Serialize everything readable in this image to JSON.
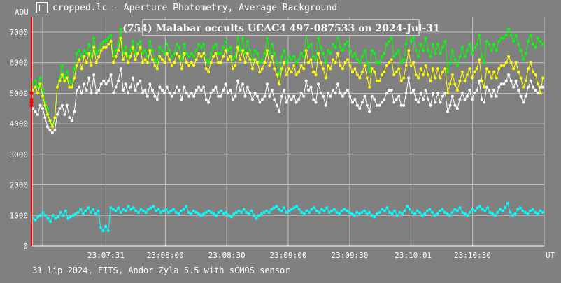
{
  "window": {
    "title": "cropped.lc - Aperture Photometry, Average Background",
    "icon": "chart-app-icon"
  },
  "footer": {
    "text": "31 lip 2024, FITS, Andor Zyla 5.5 with sCMOS sensor"
  },
  "chart_data": {
    "type": "scatter",
    "title": "(754) Malabar occults UCAC4 497-087533 on 2024-Jul-31",
    "ylabel": "ADU",
    "xlabel": "UT",
    "ylim": [
      0,
      7500
    ],
    "xlim": [
      "23:06:55",
      "23:11:05"
    ],
    "grid": true,
    "yticks": [
      "0",
      "1000",
      "2000",
      "3000",
      "4000",
      "5000",
      "6000",
      "7000"
    ],
    "xticks": [
      "23:07:31",
      "23:08:00",
      "23:08:30",
      "23:09:00",
      "23:09:30",
      "23:10:01",
      "23:10:30"
    ],
    "colors": {
      "green": "#00ff00",
      "yellow": "#ffff00",
      "white": "#ffffff",
      "cyan": "#00ffff",
      "event": "#ff0000",
      "title_box": "#808080"
    },
    "series": [
      {
        "color": "green",
        "y": [
          5300,
          5400,
          5200,
          5500,
          5100,
          4700,
          4500,
          4100,
          4000,
          4200,
          5200,
          5500,
          5900,
          5500,
          5700,
          5400,
          5200,
          5800,
          6300,
          6400,
          6200,
          6400,
          6300,
          6600,
          6200,
          6800,
          6300,
          6400,
          6600,
          6700,
          6700,
          6800,
          6900,
          6200,
          6400,
          6600,
          7100,
          6300,
          6500,
          6200,
          6400,
          6700,
          6300,
          6600,
          6700,
          6300,
          6400,
          6200,
          6700,
          6400,
          6100,
          6000,
          6500,
          6400,
          6300,
          6600,
          6400,
          6200,
          6300,
          6600,
          6500,
          6100,
          6600,
          6300,
          6200,
          6300,
          6200,
          6400,
          6600,
          6500,
          6600,
          6100,
          6000,
          6300,
          6500,
          6600,
          6300,
          6300,
          6500,
          6700,
          6400,
          6500,
          6100,
          6200,
          6900,
          6400,
          6800,
          6300,
          6700,
          6400,
          6100,
          6400,
          6300,
          6000,
          6100,
          6300,
          6800,
          6300,
          6600,
          6300,
          6000,
          5600,
          6200,
          6400,
          6000,
          6200,
          6100,
          6200,
          6000,
          6100,
          6300,
          6200,
          6900,
          6500,
          6600,
          6200,
          6100,
          6800,
          6500,
          6300,
          6000,
          6400,
          6300,
          6600,
          6500,
          6900,
          6500,
          6400,
          6600,
          6700,
          6400,
          6200,
          6300,
          6100,
          6000,
          6200,
          6400,
          6000,
          5700,
          6400,
          6300,
          6000,
          6000,
          6200,
          6300,
          6600,
          6700,
          6800,
          6200,
          6300,
          6400,
          6000,
          6100,
          6600,
          7300,
          6700,
          6800,
          6400,
          6200,
          6600,
          6400,
          6800,
          6400,
          6200,
          6600,
          6300,
          6600,
          6300,
          6500,
          6700,
          5700,
          6000,
          6400,
          6100,
          5900,
          6200,
          6500,
          6200,
          6400,
          6600,
          6300,
          6500,
          6600,
          6900,
          6200,
          6000,
          6700,
          6600,
          6400,
          6600,
          6400,
          6700,
          6800,
          6800,
          6900,
          7100,
          6900,
          6700,
          6900,
          6600,
          6400,
          6100,
          6300,
          6700,
          6900,
          6600,
          6500,
          6800,
          6700,
          6600
        ]
      },
      {
        "color": "yellow",
        "y": [
          5100,
          5200,
          5000,
          5300,
          4900,
          4600,
          4300,
          4100,
          3900,
          4200,
          5200,
          5400,
          5600,
          5400,
          5500,
          5200,
          5200,
          5500,
          5900,
          6100,
          5800,
          6200,
          6000,
          6300,
          5900,
          6500,
          6000,
          6200,
          6400,
          6500,
          6500,
          6600,
          6700,
          6000,
          6200,
          6400,
          6800,
          6100,
          6300,
          6000,
          6200,
          6500,
          6100,
          6300,
          6500,
          6000,
          6100,
          6000,
          6400,
          6100,
          5900,
          5800,
          6200,
          6100,
          6000,
          6300,
          6100,
          5900,
          6000,
          6300,
          6200,
          5800,
          6300,
          6000,
          5900,
          6000,
          5900,
          6100,
          6300,
          6200,
          6300,
          5800,
          5700,
          6000,
          6200,
          6300,
          6000,
          6000,
          6200,
          6400,
          6100,
          6200,
          5800,
          5900,
          6500,
          6100,
          6400,
          6000,
          6300,
          6100,
          5800,
          6100,
          6000,
          5700,
          5800,
          6000,
          6400,
          5900,
          6200,
          5800,
          5600,
          5300,
          5800,
          6000,
          5600,
          5800,
          5700,
          5900,
          5600,
          5700,
          5900,
          5800,
          6400,
          6000,
          6100,
          5700,
          5600,
          6300,
          6000,
          5800,
          5500,
          5900,
          5800,
          6100,
          6000,
          6300,
          5900,
          5800,
          6000,
          6100,
          5900,
          5700,
          5800,
          5600,
          5500,
          5700,
          5900,
          5500,
          5200,
          5800,
          5700,
          5400,
          5400,
          5600,
          5700,
          5900,
          6000,
          6100,
          5600,
          5700,
          5800,
          5400,
          5500,
          5900,
          6400,
          5900,
          6000,
          5600,
          5500,
          5800,
          5600,
          5900,
          5600,
          5400,
          5800,
          5500,
          5800,
          5500,
          5700,
          5800,
          5000,
          5300,
          5600,
          5300,
          5100,
          5400,
          5700,
          5400,
          5600,
          5800,
          5500,
          5700,
          5800,
          6100,
          5400,
          5200,
          5800,
          5700,
          5500,
          5700,
          5500,
          5800,
          5900,
          5900,
          6000,
          6200,
          6000,
          5800,
          6000,
          5700,
          5500,
          5200,
          5400,
          5800,
          6000,
          5700,
          5600,
          5300,
          5000,
          5500
        ]
      },
      {
        "color": "white",
        "y": [
          4500,
          4400,
          4300,
          4600,
          4500,
          4200,
          3900,
          3800,
          3700,
          3800,
          4300,
          4500,
          4600,
          4300,
          4600,
          4200,
          4100,
          4400,
          5100,
          5200,
          5000,
          5300,
          5100,
          5500,
          5000,
          5600,
          5000,
          5100,
          5300,
          5400,
          5300,
          5400,
          5600,
          5000,
          5200,
          5400,
          5800,
          5100,
          5300,
          5000,
          5200,
          5500,
          5100,
          5300,
          5400,
          5000,
          5100,
          4900,
          5300,
          5100,
          4900,
          4800,
          5200,
          5100,
          5000,
          5200,
          5000,
          4900,
          5000,
          5200,
          5100,
          4800,
          5200,
          5000,
          4900,
          5000,
          4900,
          5100,
          5200,
          5100,
          5200,
          4800,
          4700,
          5000,
          5100,
          5200,
          4900,
          4900,
          5100,
          5300,
          5000,
          5100,
          4800,
          4900,
          5400,
          5100,
          5300,
          4900,
          5200,
          5000,
          4800,
          5000,
          4900,
          4700,
          4800,
          4900,
          5300,
          4900,
          5100,
          4800,
          4600,
          4400,
          4900,
          5100,
          4700,
          4900,
          4800,
          4900,
          4700,
          4800,
          5000,
          4900,
          5400,
          5100,
          5200,
          4800,
          4700,
          5300,
          5000,
          4900,
          4600,
          5000,
          4900,
          5100,
          5000,
          5300,
          5000,
          4900,
          5000,
          5100,
          4900,
          4700,
          4800,
          4600,
          4500,
          4700,
          4900,
          4600,
          4400,
          4900,
          4800,
          4600,
          4600,
          4700,
          4800,
          5000,
          5100,
          5100,
          4700,
          4800,
          4900,
          4600,
          4600,
          5000,
          5500,
          5000,
          5100,
          4800,
          4700,
          5000,
          4800,
          5100,
          4800,
          4600,
          5000,
          4700,
          5000,
          4700,
          4900,
          5000,
          4400,
          4600,
          4900,
          4600,
          4500,
          4800,
          5000,
          4800,
          4900,
          5100,
          4800,
          5000,
          5100,
          5400,
          4800,
          4700,
          5200,
          5100,
          4900,
          5100,
          4900,
          5200,
          5300,
          5300,
          5400,
          5600,
          5400,
          5200,
          5400,
          5100,
          4900,
          4700,
          4900,
          5200,
          5400,
          5200,
          5100,
          5000,
          5200,
          5200
        ]
      },
      {
        "color": "cyan",
        "y": [
          900,
          850,
          950,
          1000,
          1100,
          1000,
          900,
          800,
          1000,
          900,
          950,
          1100,
          1000,
          1150,
          900,
          950,
          1000,
          1050,
          1100,
          1200,
          1050,
          1150,
          1250,
          1100,
          1200,
          1050,
          1150,
          600,
          500,
          650,
          500,
          1250,
          1200,
          1150,
          1250,
          1100,
          1200,
          1150,
          1300,
          1200,
          1250,
          1150,
          1100,
          1200,
          1150,
          1100,
          1200,
          1250,
          1300,
          1150,
          1200,
          1100,
          1150,
          1200,
          1100,
          1150,
          1200,
          1100,
          1050,
          1150,
          1200,
          1300,
          1100,
          1050,
          1150,
          1100,
          1050,
          1000,
          1050,
          1100,
          1150,
          1100,
          1050,
          1000,
          1100,
          1150,
          1050,
          1100,
          1000,
          950,
          1050,
          1100,
          1150,
          1100,
          1200,
          1100,
          1050,
          1150,
          1000,
          900,
          1000,
          1050,
          1100,
          1150,
          1100,
          1200,
          1250,
          1300,
          1200,
          1150,
          1250,
          1100,
          1150,
          1200,
          1250,
          1300,
          1200,
          1100,
          1050,
          1150,
          1100,
          1200,
          1250,
          1150,
          1100,
          1200,
          1150,
          1250,
          1100,
          1150,
          1200,
          1100,
          1050,
          1150,
          1200,
          1150,
          1100,
          1050,
          1000,
          1100,
          1050,
          1100,
          1150,
          1050,
          1100,
          1000,
          950,
          1050,
          1100,
          1200,
          1150,
          1250,
          1100,
          1050,
          1150,
          1000,
          1100,
          1050,
          1150,
          1300,
          1200,
          1100,
          1050,
          1150,
          1100,
          1000,
          1050,
          1150,
          1200,
          1100,
          1000,
          1050,
          1150,
          1200,
          1100,
          1050,
          1000,
          1100,
          1200,
          1150,
          1250,
          1100,
          1050,
          1000,
          1100,
          1200,
          1150,
          1250,
          1300,
          1200,
          1150,
          1250,
          1100,
          1050,
          1000,
          1100,
          1200,
          1150,
          1250,
          1400,
          1100,
          1000,
          1050,
          1200,
          1250,
          1150,
          1100,
          1050,
          1150,
          1200,
          1100,
          1050,
          1150,
          1100
        ]
      }
    ],
    "event_marker": {
      "color": "event",
      "y": [
        5000,
        4800,
        4700,
        4600
      ]
    }
  }
}
